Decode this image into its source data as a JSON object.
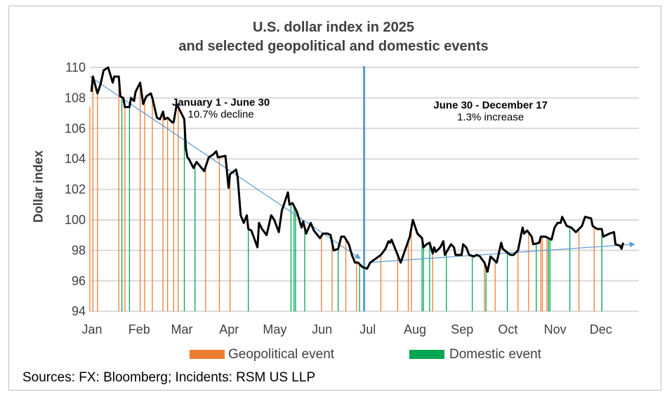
{
  "chart_data": {
    "type": "line",
    "title": "U.S. dollar index in 2025",
    "subtitle": "and selected geopolitical and domestic events",
    "ylabel": "Dollar index",
    "xlabel": "",
    "ylim": [
      94,
      110
    ],
    "yticks": [
      94,
      96,
      98,
      100,
      102,
      104,
      106,
      108,
      110
    ],
    "xticks": [
      {
        "label": "Jan",
        "date": "2025-01-01"
      },
      {
        "label": "Feb",
        "date": "2025-02-01"
      },
      {
        "label": "Mar",
        "date": "2025-03-01"
      },
      {
        "label": "Apr",
        "date": "2025-04-01"
      },
      {
        "label": "May",
        "date": "2025-05-01"
      },
      {
        "label": "Jun",
        "date": "2025-06-01"
      },
      {
        "label": "Jul",
        "date": "2025-07-01"
      },
      {
        "label": "Aug",
        "date": "2025-08-01"
      },
      {
        "label": "Sep",
        "date": "2025-09-01"
      },
      {
        "label": "Oct",
        "date": "2025-10-01"
      },
      {
        "label": "Nov",
        "date": "2025-11-01"
      },
      {
        "label": "Dec",
        "date": "2025-12-01"
      }
    ],
    "grid": "horizontal",
    "colors": {
      "line": "#000000",
      "geopolitical": "#ed7d31",
      "domestic": "#00a651",
      "trend": "#5b9bd5",
      "grid": "#d9d9d9"
    },
    "series": [
      [
        "2025-01-02",
        108.4
      ],
      [
        "2025-01-03",
        109.4
      ],
      [
        "2025-01-06",
        108.3
      ],
      [
        "2025-01-08",
        108.9
      ],
      [
        "2025-01-10",
        109.8
      ],
      [
        "2025-01-13",
        110.0
      ],
      [
        "2025-01-16",
        109.0
      ],
      [
        "2025-01-17",
        109.4
      ],
      [
        "2025-01-20",
        109.4
      ],
      [
        "2025-01-21",
        108.1
      ],
      [
        "2025-01-23",
        108.0
      ],
      [
        "2025-01-24",
        107.4
      ],
      [
        "2025-01-27",
        107.4
      ],
      [
        "2025-01-28",
        108.0
      ],
      [
        "2025-01-30",
        107.8
      ],
      [
        "2025-01-31",
        108.4
      ],
      [
        "2025-02-03",
        109.0
      ],
      [
        "2025-02-05",
        107.6
      ],
      [
        "2025-02-07",
        108.1
      ],
      [
        "2025-02-10",
        108.3
      ],
      [
        "2025-02-11",
        108.0
      ],
      [
        "2025-02-14",
        106.7
      ],
      [
        "2025-02-16",
        106.6
      ],
      [
        "2025-02-18",
        107.1
      ],
      [
        "2025-02-19",
        106.6
      ],
      [
        "2025-02-21",
        106.7
      ],
      [
        "2025-02-24",
        106.4
      ],
      [
        "2025-02-25",
        106.4
      ],
      [
        "2025-02-27",
        107.6
      ],
      [
        "2025-03-03",
        106.8
      ],
      [
        "2025-03-04",
        106.6
      ],
      [
        "2025-03-05",
        104.7
      ],
      [
        "2025-03-06",
        104.1
      ],
      [
        "2025-03-07",
        104.0
      ],
      [
        "2025-03-10",
        103.4
      ],
      [
        "2025-03-12",
        103.8
      ],
      [
        "2025-03-17",
        103.2
      ],
      [
        "2025-03-20",
        104.1
      ],
      [
        "2025-03-23",
        104.3
      ],
      [
        "2025-03-25",
        104.5
      ],
      [
        "2025-03-26",
        104.1
      ],
      [
        "2025-03-31",
        104.2
      ],
      [
        "2025-04-02",
        102.1
      ],
      [
        "2025-04-03",
        103.0
      ],
      [
        "2025-04-07",
        103.3
      ],
      [
        "2025-04-08",
        102.8
      ],
      [
        "2025-04-10",
        100.3
      ],
      [
        "2025-04-12",
        99.8
      ],
      [
        "2025-04-14",
        100.3
      ],
      [
        "2025-04-15",
        99.4
      ],
      [
        "2025-04-17",
        99.3
      ],
      [
        "2025-04-21",
        98.2
      ],
      [
        "2025-04-22",
        99.8
      ],
      [
        "2025-04-24",
        99.4
      ],
      [
        "2025-04-27",
        99.0
      ],
      [
        "2025-04-30",
        100.3
      ],
      [
        "2025-05-02",
        100.0
      ],
      [
        "2025-05-05",
        99.2
      ],
      [
        "2025-05-07",
        100.6
      ],
      [
        "2025-05-11",
        101.8
      ],
      [
        "2025-05-12",
        101.0
      ],
      [
        "2025-05-14",
        101.1
      ],
      [
        "2025-05-17",
        100.5
      ],
      [
        "2025-05-19",
        99.8
      ],
      [
        "2025-05-20",
        99.5
      ],
      [
        "2025-05-21",
        99.9
      ],
      [
        "2025-05-23",
        99.1
      ],
      [
        "2025-05-26",
        99.8
      ],
      [
        "2025-05-28",
        99.3
      ],
      [
        "2025-06-01",
        98.8
      ],
      [
        "2025-06-03",
        99.1
      ],
      [
        "2025-06-06",
        99.1
      ],
      [
        "2025-06-08",
        99.0
      ],
      [
        "2025-06-10",
        98.0
      ],
      [
        "2025-06-13",
        98.1
      ],
      [
        "2025-06-15",
        98.9
      ],
      [
        "2025-06-17",
        98.9
      ],
      [
        "2025-06-20",
        98.4
      ],
      [
        "2025-06-22",
        97.7
      ],
      [
        "2025-06-24",
        97.2
      ],
      [
        "2025-06-26",
        97.2
      ],
      [
        "2025-06-29",
        96.9
      ],
      [
        "2025-07-02",
        96.8
      ],
      [
        "2025-07-04",
        97.2
      ],
      [
        "2025-07-11",
        97.7
      ],
      [
        "2025-07-14",
        98.1
      ],
      [
        "2025-07-16",
        98.6
      ],
      [
        "2025-07-17",
        98.5
      ],
      [
        "2025-07-18",
        98.7
      ],
      [
        "2025-07-24",
        97.2
      ],
      [
        "2025-07-30",
        98.9
      ],
      [
        "2025-08-01",
        100.0
      ],
      [
        "2025-08-04",
        99.1
      ],
      [
        "2025-08-07",
        98.8
      ],
      [
        "2025-08-08",
        98.2
      ],
      [
        "2025-08-10",
        98.4
      ],
      [
        "2025-08-12",
        98.5
      ],
      [
        "2025-08-14",
        97.8
      ],
      [
        "2025-08-15",
        98.2
      ],
      [
        "2025-08-16",
        97.9
      ],
      [
        "2025-08-19",
        98.2
      ],
      [
        "2025-08-21",
        98.6
      ],
      [
        "2025-08-22",
        97.7
      ],
      [
        "2025-08-26",
        98.4
      ],
      [
        "2025-08-28",
        98.2
      ],
      [
        "2025-08-29",
        97.7
      ],
      [
        "2025-09-02",
        97.7
      ],
      [
        "2025-09-03",
        98.4
      ],
      [
        "2025-09-05",
        98.2
      ],
      [
        "2025-09-07",
        97.7
      ],
      [
        "2025-09-10",
        97.6
      ],
      [
        "2025-09-12",
        97.7
      ],
      [
        "2025-09-14",
        97.6
      ],
      [
        "2025-09-17",
        97.2
      ],
      [
        "2025-09-19",
        96.6
      ],
      [
        "2025-09-21",
        97.6
      ],
      [
        "2025-09-25",
        97.2
      ],
      [
        "2025-09-28",
        98.5
      ],
      [
        "2025-09-29",
        98.1
      ],
      [
        "2025-10-04",
        97.7
      ],
      [
        "2025-10-06",
        97.7
      ],
      [
        "2025-10-09",
        98.0
      ],
      [
        "2025-10-12",
        99.5
      ],
      [
        "2025-10-13",
        99.1
      ],
      [
        "2025-10-15",
        99.3
      ],
      [
        "2025-10-18",
        98.9
      ],
      [
        "2025-10-19",
        98.4
      ],
      [
        "2025-10-23",
        98.5
      ],
      [
        "2025-10-24",
        98.9
      ],
      [
        "2025-10-27",
        98.9
      ],
      [
        "2025-10-31",
        98.7
      ],
      [
        "2025-11-02",
        99.5
      ],
      [
        "2025-11-04",
        99.8
      ],
      [
        "2025-11-06",
        99.8
      ],
      [
        "2025-11-07",
        100.2
      ],
      [
        "2025-11-08",
        100.0
      ],
      [
        "2025-11-10",
        99.6
      ],
      [
        "2025-11-13",
        99.5
      ],
      [
        "2025-11-16",
        99.2
      ],
      [
        "2025-11-19",
        99.5
      ],
      [
        "2025-11-20",
        99.6
      ],
      [
        "2025-11-22",
        100.2
      ],
      [
        "2025-11-26",
        100.1
      ],
      [
        "2025-11-27",
        99.6
      ],
      [
        "2025-11-30",
        99.4
      ],
      [
        "2025-12-03",
        99.4
      ],
      [
        "2025-12-04",
        98.9
      ],
      [
        "2025-12-08",
        99.1
      ],
      [
        "2025-12-11",
        99.2
      ],
      [
        "2025-12-12",
        98.4
      ],
      [
        "2025-12-15",
        98.3
      ],
      [
        "2025-12-16",
        98.1
      ],
      [
        "2025-12-17",
        98.5
      ]
    ],
    "geopolitical_events": [
      "2025-01-01",
      "2025-01-03",
      "2025-01-06",
      "2025-01-20",
      "2025-01-24",
      "2025-02-03",
      "2025-02-06",
      "2025-02-11",
      "2025-02-18",
      "2025-02-21",
      "2025-02-25",
      "2025-02-28",
      "2025-03-18",
      "2025-03-27",
      "2025-04-03",
      "2025-06-02",
      "2025-06-09",
      "2025-06-18",
      "2025-06-25",
      "2025-07-11",
      "2025-07-22",
      "2025-07-29",
      "2025-07-31",
      "2025-08-14",
      "2025-09-17",
      "2025-09-24",
      "2025-10-09",
      "2025-10-16",
      "2025-10-24",
      "2025-10-25",
      "2025-10-28",
      "2025-11-18",
      "2025-11-28",
      "2025-12-03"
    ],
    "domestic_events": [
      "2025-01-22",
      "2025-01-27",
      "2025-03-04",
      "2025-03-11",
      "2025-04-15",
      "2025-05-13",
      "2025-05-15",
      "2025-05-16",
      "2025-05-22",
      "2025-06-13",
      "2025-06-27",
      "2025-08-07",
      "2025-08-08",
      "2025-08-12",
      "2025-08-23",
      "2025-09-09",
      "2025-09-18",
      "2025-10-02",
      "2025-10-21",
      "2025-10-29",
      "2025-10-30",
      "2025-11-12",
      "2025-12-03"
    ],
    "divider_date": "2025-06-30",
    "trends": [
      {
        "from": [
          "2025-01-01",
          109.4
        ],
        "to": [
          "2025-06-27",
          97.5
        ]
      },
      {
        "from": [
          "2025-07-03",
          97.2
        ],
        "to": [
          "2025-12-24",
          98.4
        ]
      }
    ],
    "annotations": [
      {
        "title": "January 1 - June 30",
        "text": "10.7% decline",
        "date": "2025-03-28",
        "value": 107.5
      },
      {
        "title": "June 30 - December 17",
        "text": "1.3% increase",
        "date": "2025-09-21",
        "value": 107.3
      }
    ],
    "legend": [
      "Geopolitical event",
      "Domestic event"
    ],
    "legend_position": "bottom"
  },
  "source": "Sources: FX: Bloomberg; Incidents: RSM US LLP"
}
